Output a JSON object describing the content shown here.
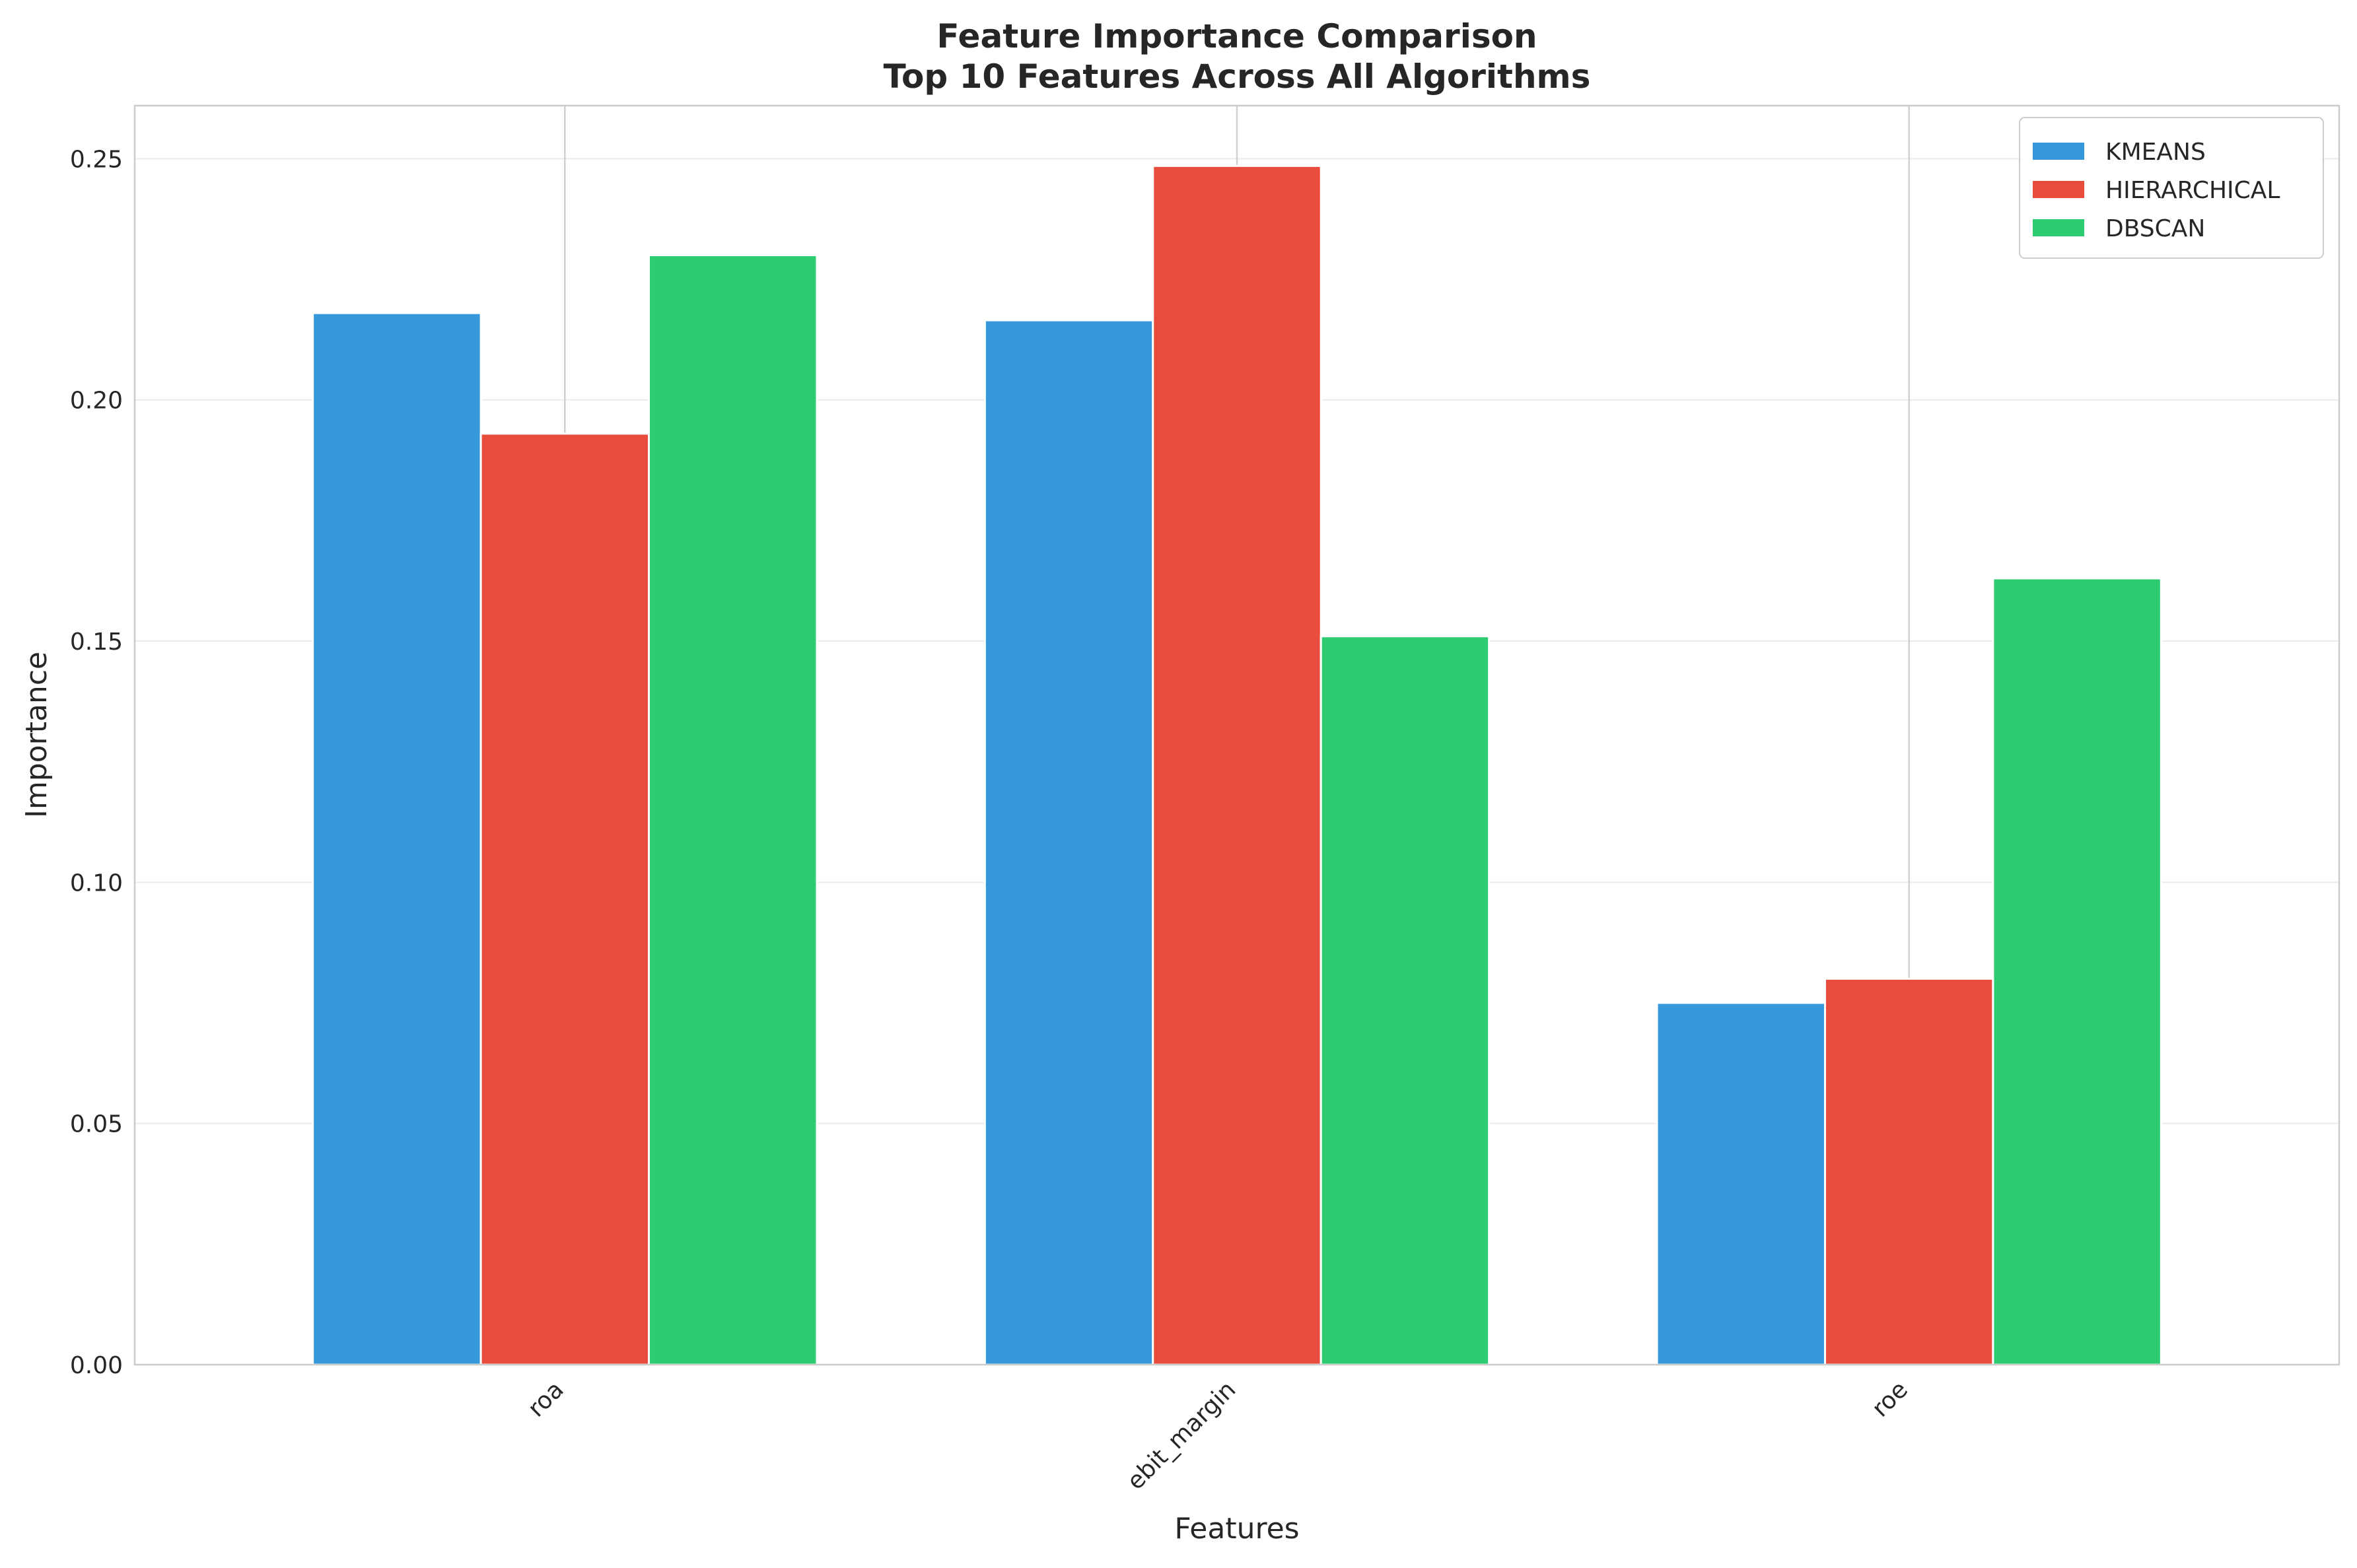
{
  "chart_data": {
    "type": "bar",
    "title_lines": [
      "Feature Importance Comparison",
      "Top 10 Features Across All Algorithms"
    ],
    "xlabel": "Features",
    "ylabel": "Importance",
    "categories": [
      "roa",
      "ebit_margin",
      "roe"
    ],
    "series": [
      {
        "name": "KMEANS",
        "color": "#3498db",
        "values": [
          0.218,
          0.2165,
          0.075
        ]
      },
      {
        "name": "HIERARCHICAL",
        "color": "#e74c3c",
        "values": [
          0.193,
          0.2485,
          0.08
        ]
      },
      {
        "name": "DBSCAN",
        "color": "#2ecc71",
        "values": [
          0.23,
          0.151,
          0.163
        ]
      }
    ],
    "ylim": [
      0,
      0.261
    ],
    "yticks": [
      0.0,
      0.05,
      0.1,
      0.15,
      0.2,
      0.25
    ],
    "ytick_labels": [
      "0.00",
      "0.05",
      "0.10",
      "0.15",
      "0.20",
      "0.25"
    ],
    "grid": true,
    "legend_position": "top-right",
    "x_tick_rotation": "45 degrees"
  }
}
